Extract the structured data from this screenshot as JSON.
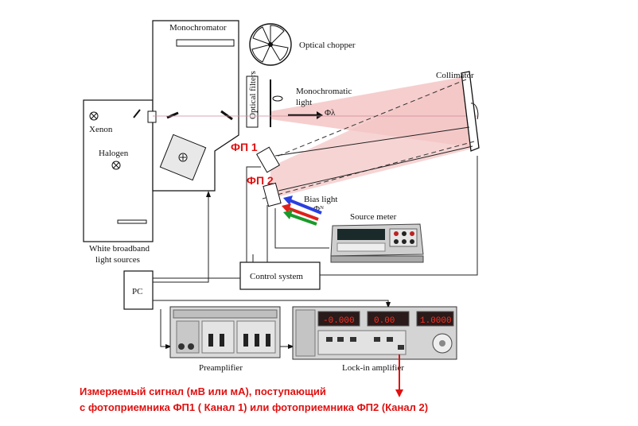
{
  "labels": {
    "monochromator": "Monochromator",
    "optical_chopper": "Optical chopper",
    "optical_filters": "Optical filters",
    "monochromatic_light_1": "Monochromatic",
    "monochromatic_light_2": "light",
    "phi_lambda": "Φλ",
    "collimator": "Collimator",
    "xenon": "Xenon",
    "halogen": "Halogen",
    "white_light_1": "White broadband",
    "white_light_2": "light sources",
    "fp1": "ФП 1",
    "fp2": "ФП 2",
    "bias_light": "Bias light",
    "phi_n": "Φᴺ",
    "source_meter": "Source meter",
    "control_system": "Control system",
    "pc": "PC",
    "preamplifier": "Preamplifier",
    "lockin": "Lock-in amplifier",
    "lockin_display_1": "-0.000",
    "lockin_display_2": "0.00",
    "lockin_display_3": "1.0000",
    "caption_line1": "Измеряемый сигнал (мВ или мА), поступающий",
    "caption_line2": "с фотоприемника ФП1 ( Канал 1) или фотоприемника ФП2 (Канал 2)"
  },
  "colors": {
    "beam_pink": "#f4c6c6",
    "beam_yellow": "#f3ecb0",
    "red_text": "#e01010",
    "arrow_blue": "#2a3fe0",
    "arrow_red": "#e0201a",
    "arrow_green": "#1a9a2a",
    "display_red": "#ff3020"
  }
}
